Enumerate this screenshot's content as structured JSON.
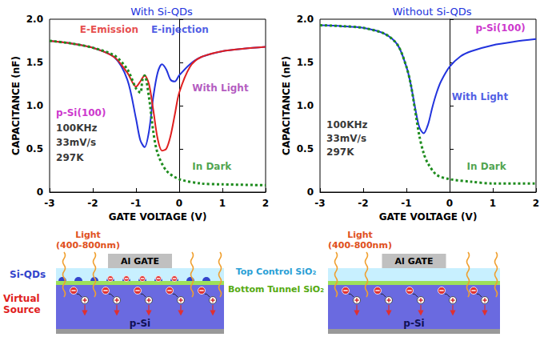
{
  "chart_data": [
    {
      "type": "line",
      "title": "With Si-QDs",
      "x_label": "GATE VOLTAGE (V)",
      "y_label": "CAPACITANCE (nF)",
      "xlim": [
        -3,
        2
      ],
      "xticks": [
        -3,
        -2,
        -1,
        0,
        1,
        2
      ],
      "ylim": [
        0,
        2
      ],
      "yticks": [
        0,
        0.5,
        {
          "value": 1,
          "label": "1.0"
        },
        1.5,
        {
          "value": 2,
          "label": "2.0"
        }
      ],
      "grid": false,
      "series": [
        {
          "name": "In Dark",
          "color": "#1e8c1e",
          "line_style": "dotted",
          "marker": "none",
          "x": [
            -3,
            -2.5,
            -2,
            -1.5,
            -1.2,
            -1.0,
            -0.9,
            -0.85,
            -0.8,
            -0.7,
            -0.6,
            -0.5,
            -0.3,
            0,
            0.5,
            1,
            2
          ],
          "values": [
            1.75,
            1.72,
            1.67,
            1.58,
            1.42,
            1.2,
            1.15,
            1.3,
            1.35,
            1.1,
            0.7,
            0.45,
            0.25,
            0.15,
            0.1,
            0.09,
            0.08
          ]
        },
        {
          "name": "With Light",
          "color": "#2233dd",
          "line_style": "solid",
          "marker": "none",
          "x": [
            -3,
            -2.5,
            -2,
            -1.5,
            -1.2,
            -1,
            -0.9,
            -0.8,
            -0.7,
            -0.6,
            -0.5,
            -0.4,
            -0.3,
            -0.2,
            -0.1,
            0,
            0.25,
            0.5,
            1,
            1.5,
            2
          ],
          "values": [
            1.75,
            1.72,
            1.67,
            1.56,
            1.3,
            0.85,
            0.6,
            0.52,
            0.7,
            1.1,
            1.38,
            1.48,
            1.42,
            1.3,
            1.28,
            1.35,
            1.48,
            1.56,
            1.63,
            1.66,
            1.68
          ]
        },
        {
          "name": "With Light",
          "color": "#e02020",
          "line_style": "solid",
          "marker": "none",
          "x": [
            2,
            1.5,
            1,
            0.5,
            0.25,
            0,
            -0.1,
            -0.2,
            -0.3,
            -0.4,
            -0.5,
            -0.6,
            -0.7,
            -0.8,
            -0.9,
            -1,
            -1.2,
            -1.5,
            -2,
            -2.5,
            -3
          ],
          "values": [
            1.68,
            1.66,
            1.63,
            1.56,
            1.45,
            1.15,
            0.9,
            0.65,
            0.5,
            0.48,
            0.62,
            0.95,
            1.25,
            1.35,
            1.28,
            1.22,
            1.38,
            1.56,
            1.67,
            1.72,
            1.75
          ]
        }
      ],
      "annotations": [
        {
          "text": "E-Emission",
          "x": -2.3,
          "y": 1.88,
          "color": "#e02020"
        },
        {
          "text": "E-injection",
          "x": -0.65,
          "y": 1.88,
          "color": "#2233dd"
        },
        {
          "text": "With Light",
          "x": 0.3,
          "y": 1.2,
          "color": "#a030b0"
        },
        {
          "text": "In Dark",
          "x": 0.3,
          "y": 0.3,
          "color": "#1e8c1e"
        },
        {
          "text": "p-Si(100)",
          "x": -2.85,
          "y": 0.92,
          "color": "#c000c0"
        },
        {
          "text": "100KHz",
          "x": -2.85,
          "y": 0.74,
          "color": "#000000"
        },
        {
          "text": "33mV/s",
          "x": -2.85,
          "y": 0.57,
          "color": "#000000"
        },
        {
          "text": "297K",
          "x": -2.85,
          "y": 0.4,
          "color": "#000000"
        }
      ]
    },
    {
      "type": "line",
      "title": "Without Si-QDs",
      "x_label": "GATE VOLTAGE (V)",
      "y_label": "CAPACITANCE (nF)",
      "xlim": [
        -3,
        2
      ],
      "xticks": [
        -3,
        -2,
        -1,
        0,
        1,
        2
      ],
      "ylim": [
        0,
        2
      ],
      "yticks": [
        0,
        0.5,
        {
          "value": 1,
          "label": "1.0"
        },
        1.5,
        {
          "value": 2,
          "label": "2.0"
        }
      ],
      "grid": false,
      "series": [
        {
          "name": "In Dark",
          "color": "#1e8c1e",
          "line_style": "dotted",
          "marker": "none",
          "x": [
            -3,
            -2.5,
            -2,
            -1.5,
            -1.2,
            -1,
            -0.9,
            -0.8,
            -0.7,
            -0.6,
            -0.5,
            -0.3,
            0,
            0.5,
            1,
            2
          ],
          "values": [
            1.93,
            1.92,
            1.9,
            1.83,
            1.7,
            1.45,
            1.25,
            0.95,
            0.65,
            0.45,
            0.33,
            0.2,
            0.15,
            0.12,
            0.1,
            0.1
          ]
        },
        {
          "name": "With Light",
          "color": "#2233dd",
          "line_style": "solid",
          "marker": "none",
          "x": [
            -3,
            -2.5,
            -2,
            -1.5,
            -1.2,
            -1,
            -0.9,
            -0.8,
            -0.7,
            -0.6,
            -0.5,
            -0.4,
            -0.3,
            -0.2,
            0,
            0.25,
            0.5,
            1,
            1.5,
            2
          ],
          "values": [
            1.93,
            1.92,
            1.9,
            1.83,
            1.7,
            1.45,
            1.25,
            0.98,
            0.75,
            0.68,
            0.78,
            0.98,
            1.15,
            1.28,
            1.45,
            1.57,
            1.63,
            1.7,
            1.74,
            1.77
          ]
        }
      ],
      "annotations": [
        {
          "text": "p-Si(100)",
          "x": 0.6,
          "y": 1.9,
          "color": "#c000c0"
        },
        {
          "text": "With Light",
          "x": 0.05,
          "y": 1.1,
          "color": "#2233dd"
        },
        {
          "text": "In Dark",
          "x": 0.4,
          "y": 0.3,
          "color": "#1e8c1e"
        },
        {
          "text": "100KHz",
          "x": -2.85,
          "y": 0.78,
          "color": "#000000"
        },
        {
          "text": "33mV/s",
          "x": -2.85,
          "y": 0.62,
          "color": "#000000"
        },
        {
          "text": "297K",
          "x": -2.85,
          "y": 0.46,
          "color": "#000000"
        }
      ]
    }
  ],
  "diagram": {
    "panels": [
      {
        "light": "Light",
        "wavelength": "(400-800nm)",
        "gate": "Al GATE",
        "dots": "Si-QDs",
        "source": "Virtual Source",
        "substrate": "p-Si"
      },
      {
        "light": "Light",
        "wavelength": "(400-800nm)",
        "gate": "Al GATE",
        "substrate": "p-Si"
      }
    ],
    "top_oxide": "Top Control SiO₂",
    "bottom_oxide": "Bottom Tunnel SiO₂"
  }
}
